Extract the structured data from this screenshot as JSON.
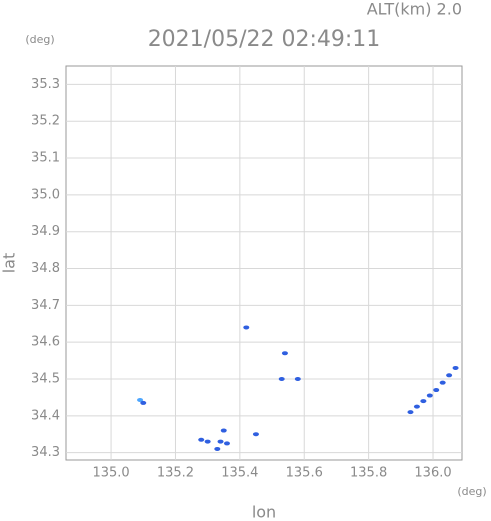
{
  "chart_data": {
    "type": "scatter",
    "title": "2021/05/22 02:49:11",
    "subtitle": "ALT(km) 2.0",
    "y_unit": "(deg)",
    "x_unit": "(deg)",
    "x_label": "lon",
    "y_label": "lat",
    "xlim": [
      134.86,
      136.09
    ],
    "ylim": [
      34.28,
      35.35
    ],
    "xticks": [
      {
        "value": 135.0,
        "label": "135.0"
      },
      {
        "value": 135.2,
        "label": "135.2"
      },
      {
        "value": 135.4,
        "label": "135.4"
      },
      {
        "value": 135.6,
        "label": "135.6"
      },
      {
        "value": 135.8,
        "label": "135.8"
      },
      {
        "value": 136.0,
        "label": "136.0"
      }
    ],
    "yticks": [
      {
        "value": 34.3,
        "label": "34.3"
      },
      {
        "value": 34.4,
        "label": "34.4"
      },
      34.5,
      34.6,
      34.7,
      34.8,
      34.9,
      {
        "value": 35.0,
        "label": "35.0"
      },
      35.1,
      35.2,
      35.3
    ],
    "grid": true,
    "series": [
      {
        "color": "#4da6ff",
        "x": [
          135.09
        ],
        "y": [
          34.443
        ]
      },
      {
        "color": "#2f5fe0",
        "x": [
          135.1,
          135.42,
          135.54,
          135.53,
          135.58,
          135.28,
          135.3,
          135.35,
          135.34,
          135.36,
          135.33,
          135.45,
          135.93,
          135.95,
          135.97,
          135.99,
          136.01,
          136.03,
          136.05,
          136.07
        ],
        "y": [
          34.435,
          34.64,
          34.57,
          34.5,
          34.5,
          34.335,
          34.33,
          34.36,
          34.33,
          34.325,
          34.31,
          34.35,
          34.41,
          34.425,
          34.44,
          34.455,
          34.47,
          34.49,
          34.51,
          34.53
        ]
      }
    ]
  }
}
